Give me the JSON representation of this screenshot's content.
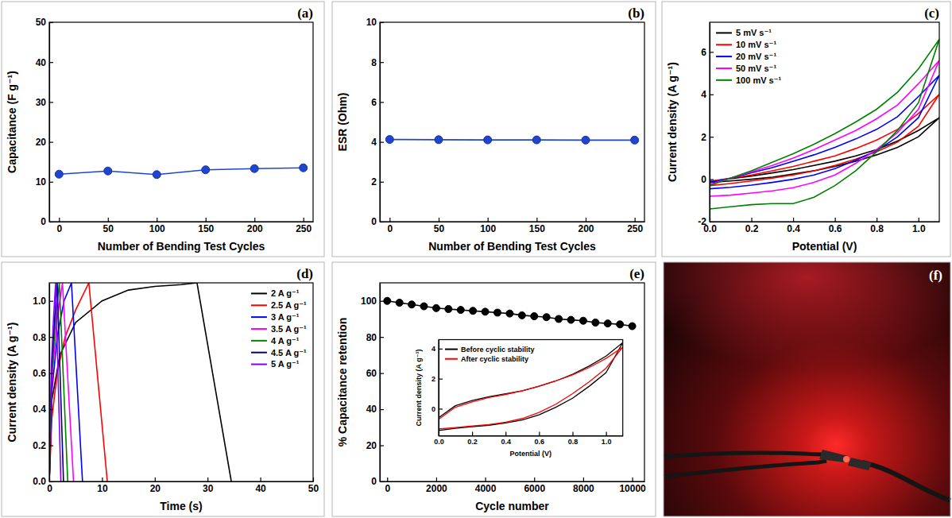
{
  "chart_data": [
    {
      "type": "line",
      "panel_label": "(a)",
      "x_label": "Number of Bending Test Cycles",
      "y_label": "Capacitance (F g⁻¹)",
      "x": [
        0,
        50,
        100,
        150,
        200,
        250
      ],
      "values": [
        11.9,
        12.7,
        11.8,
        13.0,
        13.3,
        13.5
      ],
      "color": "#1f45d0",
      "marker": "circle",
      "line_style": "solid",
      "xlim": [
        -10,
        260
      ],
      "xticks": [
        0,
        50,
        100,
        150,
        200,
        250
      ],
      "ylim": [
        0,
        50
      ],
      "yticks": [
        0,
        10,
        20,
        30,
        40,
        50
      ]
    },
    {
      "type": "line",
      "panel_label": "(b)",
      "x_label": "Number of Bending Test Cycles",
      "y_label": "ESR (Ohm)",
      "x": [
        0,
        50,
        100,
        150,
        200,
        250
      ],
      "values": [
        4.12,
        4.11,
        4.1,
        4.1,
        4.09,
        4.09
      ],
      "color": "#1f45d0",
      "marker": "circle",
      "line_style": "solid",
      "xlim": [
        -10,
        260
      ],
      "xticks": [
        0,
        50,
        100,
        150,
        200,
        250
      ],
      "ylim": [
        0,
        10
      ],
      "yticks": [
        0,
        2,
        4,
        6,
        8,
        10
      ]
    },
    {
      "type": "line",
      "panel_label": "(c)",
      "x_label": "Potential (V)",
      "y_label": "Current density (A g⁻¹)",
      "legend": "upper left",
      "xlim": [
        0,
        1.1
      ],
      "xticks": [
        {
          "value": 0,
          "label": "0.0"
        },
        {
          "value": 0.2,
          "label": "0.2"
        },
        {
          "value": 0.4,
          "label": "0.4"
        },
        {
          "value": 0.6,
          "label": "0.6"
        },
        {
          "value": 0.8,
          "label": "0.8"
        },
        {
          "value": 1.0,
          "label": "1.0"
        }
      ],
      "ylim": [
        -2,
        7.4
      ],
      "yticks": [
        -2,
        0,
        2,
        4,
        6
      ],
      "series": [
        {
          "name": "5 mV s⁻¹",
          "color": "#000000",
          "marker": "none",
          "line_style": "solid",
          "x": [
            0,
            0.1,
            0.2,
            0.3,
            0.4,
            0.5,
            0.6,
            0.7,
            0.8,
            0.9,
            1.0,
            1.1,
            1.0,
            0.9,
            0.8,
            0.7,
            0.6,
            0.5,
            0.4,
            0.3,
            0.2,
            0.1,
            0
          ],
          "values": [
            -0.1,
            0.02,
            0.15,
            0.3,
            0.45,
            0.65,
            0.85,
            1.1,
            1.4,
            1.8,
            2.3,
            2.9,
            2.0,
            1.5,
            1.15,
            0.85,
            0.6,
            0.4,
            0.25,
            0.1,
            0.0,
            -0.08,
            -0.15
          ]
        },
        {
          "name": "10 mV s⁻¹",
          "color": "#ff0000",
          "marker": "none",
          "line_style": "solid",
          "x": [
            0,
            0.1,
            0.2,
            0.3,
            0.4,
            0.5,
            0.6,
            0.7,
            0.8,
            0.9,
            1.0,
            1.1,
            1.0,
            0.9,
            0.8,
            0.7,
            0.6,
            0.5,
            0.4,
            0.3,
            0.2,
            0.1,
            0
          ],
          "values": [
            -0.1,
            0.05,
            0.2,
            0.4,
            0.6,
            0.85,
            1.1,
            1.45,
            1.85,
            2.35,
            3.1,
            4.0,
            2.5,
            1.75,
            1.3,
            0.95,
            0.65,
            0.4,
            0.2,
            0.05,
            -0.08,
            -0.2,
            -0.3
          ]
        },
        {
          "name": "20 mV s⁻¹",
          "color": "#0000ff",
          "marker": "none",
          "line_style": "solid",
          "x": [
            0,
            0.1,
            0.2,
            0.3,
            0.4,
            0.5,
            0.6,
            0.7,
            0.8,
            0.9,
            1.0,
            1.1,
            1.0,
            0.9,
            0.8,
            0.7,
            0.6,
            0.5,
            0.4,
            0.3,
            0.2,
            0.1,
            0
          ],
          "values": [
            -0.15,
            0.05,
            0.3,
            0.55,
            0.85,
            1.15,
            1.5,
            1.9,
            2.35,
            2.95,
            3.9,
            4.9,
            2.9,
            2.0,
            1.35,
            0.9,
            0.5,
            0.2,
            0.0,
            -0.15,
            -0.28,
            -0.38,
            -0.45
          ]
        },
        {
          "name": "50 mV s⁻¹",
          "color": "#ff00ff",
          "marker": "none",
          "line_style": "solid",
          "x": [
            0,
            0.1,
            0.2,
            0.3,
            0.4,
            0.5,
            0.6,
            0.7,
            0.8,
            0.9,
            1.0,
            1.1,
            1.0,
            0.9,
            0.8,
            0.7,
            0.6,
            0.5,
            0.4,
            0.3,
            0.2,
            0.1,
            0
          ],
          "values": [
            -0.25,
            0.05,
            0.35,
            0.65,
            1.0,
            1.4,
            1.85,
            2.3,
            2.85,
            3.5,
            4.5,
            5.6,
            3.3,
            2.2,
            1.4,
            0.75,
            0.2,
            -0.15,
            -0.4,
            -0.55,
            -0.65,
            -0.75,
            -0.8
          ]
        },
        {
          "name": "100 mV s⁻¹",
          "color": "#008000",
          "marker": "none",
          "line_style": "solid",
          "x": [
            0,
            0.1,
            0.2,
            0.3,
            0.4,
            0.5,
            0.6,
            0.7,
            0.8,
            0.9,
            1.0,
            1.1,
            1.0,
            0.9,
            0.8,
            0.7,
            0.6,
            0.5,
            0.4,
            0.3,
            0.2,
            0.1,
            0
          ],
          "values": [
            -0.3,
            0.05,
            0.4,
            0.8,
            1.2,
            1.65,
            2.15,
            2.7,
            3.3,
            4.1,
            5.2,
            6.6,
            3.6,
            2.3,
            1.3,
            0.4,
            -0.3,
            -0.85,
            -1.15,
            -1.15,
            -1.2,
            -1.3,
            -1.4
          ]
        }
      ]
    },
    {
      "type": "line",
      "panel_label": "(d)",
      "x_label": "Time (s)",
      "y_label": "Current density (A g⁻¹)",
      "legend": "upper right",
      "xlim": [
        0,
        50
      ],
      "xticks": [
        0,
        10,
        20,
        30,
        40,
        50
      ],
      "ylim": [
        0,
        1.1
      ],
      "yticks": [
        {
          "value": 0,
          "label": "0.0"
        },
        {
          "value": 0.2,
          "label": "0.2"
        },
        {
          "value": 0.4,
          "label": "0.4"
        },
        {
          "value": 0.6,
          "label": "0.6"
        },
        {
          "value": 0.8,
          "label": "0.8"
        },
        {
          "value": 1.0,
          "label": "1.0"
        }
      ],
      "series": [
        {
          "name": "2 A g⁻¹",
          "color": "#000000",
          "marker": "none",
          "line_style": "solid",
          "x": [
            0,
            0.5,
            2,
            5,
            10,
            15,
            20,
            25,
            28,
            34.5
          ],
          "values": [
            0,
            0.45,
            0.7,
            0.88,
            1.0,
            1.06,
            1.08,
            1.09,
            1.1,
            0
          ]
        },
        {
          "name": "2.5 A g⁻¹",
          "color": "#ff0000",
          "marker": "none",
          "line_style": "solid",
          "x": [
            0,
            0.5,
            1.5,
            3,
            5,
            7.5,
            11
          ],
          "values": [
            0,
            0.35,
            0.6,
            0.8,
            0.95,
            1.1,
            0
          ]
        },
        {
          "name": "3 A g⁻¹",
          "color": "#0000ff",
          "marker": "none",
          "line_style": "solid",
          "x": [
            0,
            0.5,
            1.5,
            2.8,
            4.2,
            6.3
          ],
          "values": [
            0,
            0.5,
            0.8,
            1.0,
            1.1,
            0
          ]
        },
        {
          "name": "3.5 A g⁻¹",
          "color": "#ff00ff",
          "marker": "none",
          "line_style": "solid",
          "x": [
            0,
            0.6,
            1.5,
            2.5,
            4.6
          ],
          "values": [
            0,
            0.6,
            0.9,
            1.1,
            0
          ]
        },
        {
          "name": "4 A g⁻¹",
          "color": "#008000",
          "marker": "none",
          "line_style": "solid",
          "x": [
            0,
            0.5,
            1.2,
            1.9,
            3.5
          ],
          "values": [
            0,
            0.6,
            0.9,
            1.1,
            0
          ]
        },
        {
          "name": "4.5 A g⁻¹",
          "color": "#000080",
          "marker": "none",
          "line_style": "solid",
          "x": [
            0,
            0.5,
            1.0,
            1.5,
            2.7
          ],
          "values": [
            0,
            0.65,
            0.9,
            1.1,
            0
          ]
        },
        {
          "name": "5 A g⁻¹",
          "color": "#7f00ff",
          "marker": "none",
          "line_style": "solid",
          "x": [
            0,
            0.4,
            0.8,
            1.2,
            2.2
          ],
          "values": [
            0,
            0.65,
            0.9,
            1.1,
            0
          ]
        }
      ]
    },
    {
      "type": "line",
      "panel_label": "(e)",
      "x_label": "Cycle number",
      "y_label": "% Capacitance retention",
      "x": [
        0,
        500,
        1000,
        1500,
        2000,
        2500,
        3000,
        3500,
        4000,
        4500,
        5000,
        5500,
        6000,
        6500,
        7000,
        7500,
        8000,
        8500,
        9000,
        9500,
        10000
      ],
      "values": [
        100,
        99,
        98,
        97,
        96,
        95.5,
        95,
        94.5,
        94,
        93.5,
        93,
        92,
        91.5,
        91,
        90,
        89.5,
        89,
        88,
        87.5,
        87,
        86
      ],
      "color": "#000000",
      "marker": "circle",
      "line_style": "solid",
      "xlim": [
        -300,
        10500
      ],
      "xticks": [
        0,
        2000,
        4000,
        6000,
        8000,
        10000
      ],
      "ylim": [
        0,
        110
      ],
      "yticks": [
        0,
        20,
        40,
        60,
        80,
        100
      ]
    },
    {
      "type": "line",
      "x_label": "Potential (V)",
      "y_label": "Current density (A g⁻¹)",
      "legend": "upper left",
      "xlim": [
        0,
        1.1
      ],
      "xticks": [
        {
          "value": 0,
          "label": "0.0"
        },
        {
          "value": 0.2,
          "label": "0.2"
        },
        {
          "value": 0.4,
          "label": "0.4"
        },
        {
          "value": 0.6,
          "label": "0.6"
        },
        {
          "value": 0.8,
          "label": "0.8"
        },
        {
          "value": 1.0,
          "label": "1.0"
        }
      ],
      "ylim": [
        -1.8,
        4.6
      ],
      "yticks": [
        0,
        2,
        4
      ],
      "series": [
        {
          "name": "Before cyclic stability",
          "color": "#000000",
          "marker": "none",
          "line_style": "solid",
          "x": [
            0,
            0.1,
            0.2,
            0.3,
            0.4,
            0.5,
            0.6,
            0.7,
            0.8,
            0.9,
            1.0,
            1.1,
            1.0,
            0.9,
            0.8,
            0.7,
            0.6,
            0.5,
            0.4,
            0.3,
            0.2,
            0.1,
            0
          ],
          "values": [
            -0.6,
            0.2,
            0.55,
            0.8,
            1.0,
            1.2,
            1.5,
            1.85,
            2.3,
            2.85,
            3.5,
            4.4,
            2.4,
            1.5,
            0.7,
            0.1,
            -0.4,
            -0.75,
            -0.95,
            -1.1,
            -1.2,
            -1.3,
            -1.45
          ]
        },
        {
          "name": "After cyclic stability",
          "color": "#ff0000",
          "marker": "none",
          "line_style": "solid",
          "x": [
            0,
            0.1,
            0.2,
            0.3,
            0.4,
            0.5,
            0.6,
            0.7,
            0.8,
            0.9,
            1.0,
            1.1,
            1.0,
            0.9,
            0.8,
            0.7,
            0.6,
            0.5,
            0.4,
            0.3,
            0.2,
            0.1,
            0
          ],
          "values": [
            -0.7,
            0.1,
            0.45,
            0.75,
            0.95,
            1.2,
            1.5,
            1.85,
            2.25,
            2.75,
            3.35,
            4.1,
            2.7,
            1.8,
            1.0,
            0.3,
            -0.25,
            -0.65,
            -0.9,
            -1.05,
            -1.15,
            -1.25,
            -1.35
          ]
        }
      ]
    }
  ],
  "photo": {
    "panel_label": "(f)"
  }
}
